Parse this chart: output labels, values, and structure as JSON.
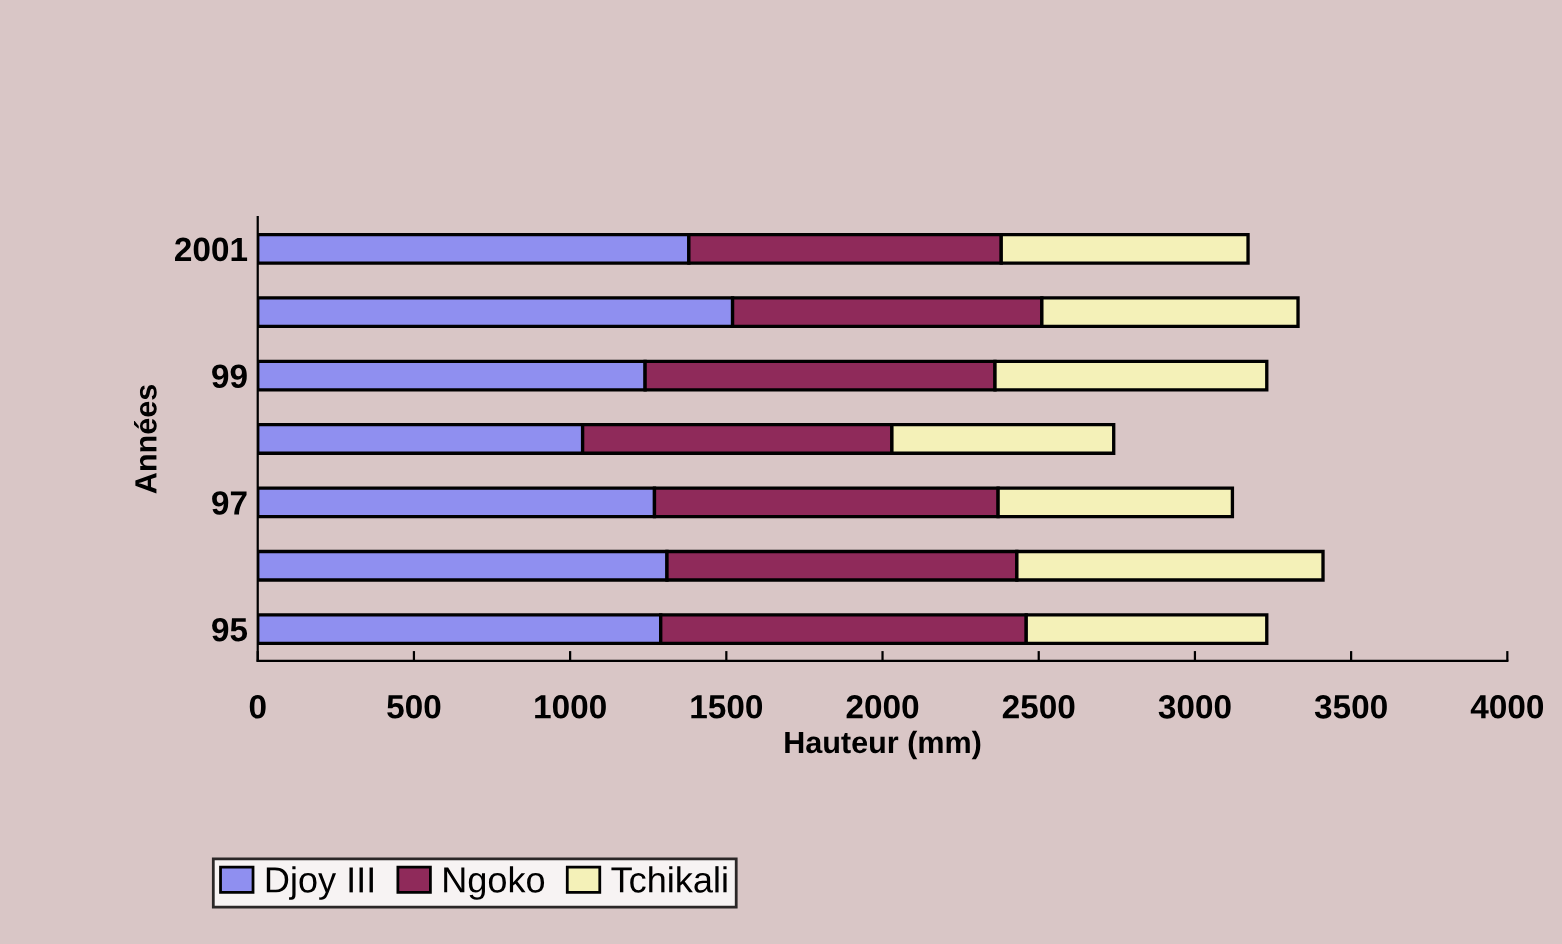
{
  "chart_data": {
    "type": "bar",
    "orientation": "horizontal",
    "stacked": true,
    "xlabel": "Hauteur (mm)",
    "ylabel": "Années",
    "categories": [
      "2001",
      null,
      "99",
      null,
      "97",
      null,
      "95"
    ],
    "series": [
      {
        "name": "Djoy III",
        "color": "#8f8ff0",
        "values": [
          1380,
          1520,
          1240,
          1040,
          1270,
          1310,
          1290
        ]
      },
      {
        "name": "Ngoko",
        "color": "#8f2a5a",
        "values": [
          1000,
          990,
          1120,
          990,
          1100,
          1120,
          1170
        ]
      },
      {
        "name": "Tchikali",
        "color": "#f4f1b8",
        "values": [
          790,
          820,
          870,
          710,
          750,
          980,
          770
        ]
      }
    ],
    "xlim": [
      0,
      4000
    ],
    "xticks": [
      0,
      500,
      1000,
      1500,
      2000,
      2500,
      3000,
      3500,
      4000
    ],
    "grid": false,
    "legend": "bottom left"
  }
}
